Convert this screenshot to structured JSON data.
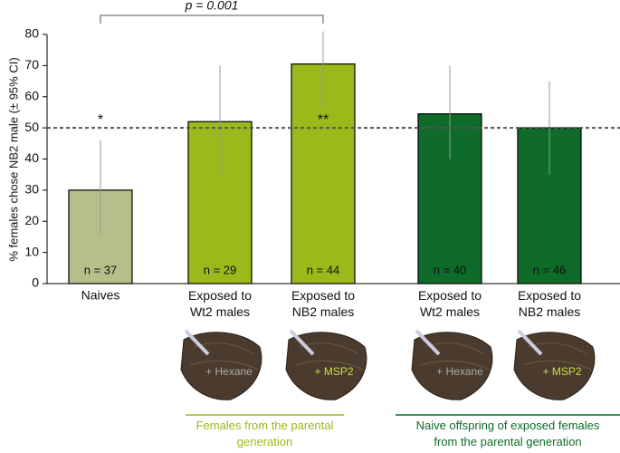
{
  "chart_data": {
    "type": "bar",
    "y_label": "% females chose NB2 male (± 95% CI)",
    "categories": [
      "Naives",
      "Exposed to\nWt2 males",
      "Exposed to\nNB2 males",
      "Exposed to\nWt2 males",
      "Exposed to\nNB2 males"
    ],
    "values": [
      30,
      52,
      70.5,
      54.5,
      50
    ],
    "ci_low": [
      16,
      35,
      56,
      40,
      35
    ],
    "ci_high": [
      46,
      70,
      81,
      70,
      65
    ],
    "colors": [
      "#b5bf8a",
      "#9ab91a",
      "#9ab91a",
      "#0e6b2a",
      "#0e6b2a"
    ],
    "n_labels": [
      "n = 37",
      "n = 29",
      "n = 44",
      "n = 40",
      "n = 46"
    ],
    "significance": [
      "*",
      null,
      "**",
      null,
      null
    ],
    "reference_line": 50,
    "comparison": {
      "label": "p = 0.001",
      "from": 0,
      "to": 2
    },
    "treatment_labels": [
      "+ Hexane",
      "+ MSP2",
      "+ Hexane",
      "+ MSP2"
    ],
    "groups": [
      {
        "label": "Females from the parental\ngeneration",
        "color": "#9ab91a"
      },
      {
        "label": "Naive offspring of exposed females\nfrom the parental generation",
        "color": "#0e6b2a"
      }
    ],
    "ylim": [
      0,
      80
    ],
    "yticks": [
      0,
      10,
      20,
      30,
      40,
      50,
      60,
      70,
      80
    ]
  }
}
